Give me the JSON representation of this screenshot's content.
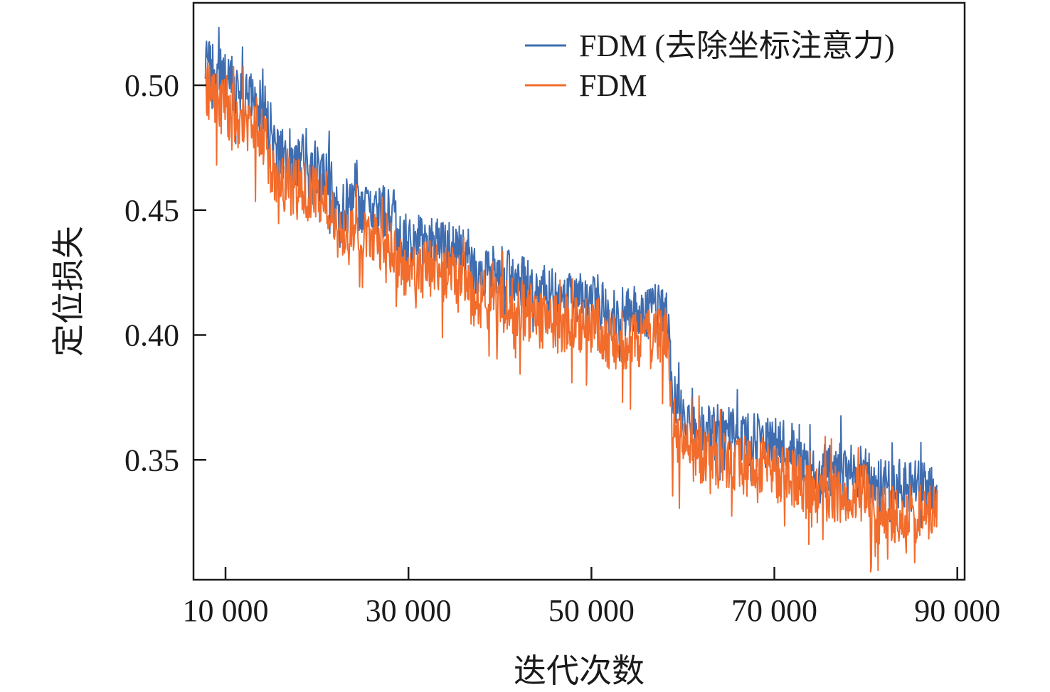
{
  "chart_data": {
    "type": "line",
    "title": "",
    "xlabel": "迭代次数",
    "ylabel": "定位损失",
    "xlim": [
      6500,
      90800
    ],
    "ylim": [
      0.302,
      0.533
    ],
    "x_ticks": [
      10000,
      30000,
      50000,
      70000,
      90000
    ],
    "x_tick_labels": [
      "10 000",
      "30 000",
      "50 000",
      "70 000",
      "90 000"
    ],
    "y_ticks": [
      0.35,
      0.4,
      0.45,
      0.5
    ],
    "y_tick_labels": [
      "0.35",
      "0.40",
      "0.45",
      "0.50"
    ],
    "grid": false,
    "legend": "top-right",
    "x_range": [
      7800,
      87800
    ],
    "series": [
      {
        "name": "FDM (去除坐标注意力)",
        "color": "#3f6db0",
        "noise_amplitude": 0.011,
        "points": [
          [
            7800,
            0.512
          ],
          [
            8500,
            0.506
          ],
          [
            10000,
            0.503
          ],
          [
            12000,
            0.498
          ],
          [
            14500,
            0.49
          ],
          [
            15000,
            0.474
          ],
          [
            17000,
            0.472
          ],
          [
            19000,
            0.469
          ],
          [
            21500,
            0.465
          ],
          [
            22000,
            0.452
          ],
          [
            25000,
            0.451
          ],
          [
            28500,
            0.448
          ],
          [
            29000,
            0.438
          ],
          [
            33000,
            0.436
          ],
          [
            36500,
            0.433
          ],
          [
            37000,
            0.425
          ],
          [
            40000,
            0.425
          ],
          [
            44000,
            0.419
          ],
          [
            44500,
            0.415
          ],
          [
            48000,
            0.414
          ],
          [
            51000,
            0.413
          ],
          [
            51500,
            0.409
          ],
          [
            55000,
            0.409
          ],
          [
            58300,
            0.41
          ],
          [
            58800,
            0.378
          ],
          [
            60000,
            0.366
          ],
          [
            62000,
            0.363
          ],
          [
            66000,
            0.36
          ],
          [
            70000,
            0.356
          ],
          [
            73000,
            0.353
          ],
          [
            73500,
            0.345
          ],
          [
            77000,
            0.346
          ],
          [
            80000,
            0.346
          ],
          [
            80500,
            0.34
          ],
          [
            84000,
            0.339
          ],
          [
            87800,
            0.338
          ]
        ]
      },
      {
        "name": "FDM",
        "color": "#f26c2c",
        "noise_amplitude": 0.012,
        "points": [
          [
            7800,
            0.5
          ],
          [
            8500,
            0.494
          ],
          [
            10000,
            0.491
          ],
          [
            12000,
            0.485
          ],
          [
            14500,
            0.478
          ],
          [
            15000,
            0.463
          ],
          [
            17000,
            0.46
          ],
          [
            19000,
            0.457
          ],
          [
            21500,
            0.454
          ],
          [
            22000,
            0.44
          ],
          [
            25000,
            0.439
          ],
          [
            28500,
            0.436
          ],
          [
            29000,
            0.427
          ],
          [
            33000,
            0.426
          ],
          [
            36500,
            0.423
          ],
          [
            37000,
            0.415
          ],
          [
            40000,
            0.413
          ],
          [
            44000,
            0.408
          ],
          [
            44500,
            0.405
          ],
          [
            48000,
            0.404
          ],
          [
            51000,
            0.403
          ],
          [
            51500,
            0.398
          ],
          [
            55000,
            0.398
          ],
          [
            58300,
            0.399
          ],
          [
            58800,
            0.365
          ],
          [
            60000,
            0.355
          ],
          [
            62000,
            0.352
          ],
          [
            66000,
            0.348
          ],
          [
            70000,
            0.344
          ],
          [
            73000,
            0.342
          ],
          [
            73500,
            0.336
          ],
          [
            77000,
            0.337
          ],
          [
            80000,
            0.337
          ],
          [
            80500,
            0.328
          ],
          [
            84000,
            0.328
          ],
          [
            87800,
            0.328
          ]
        ]
      }
    ]
  }
}
